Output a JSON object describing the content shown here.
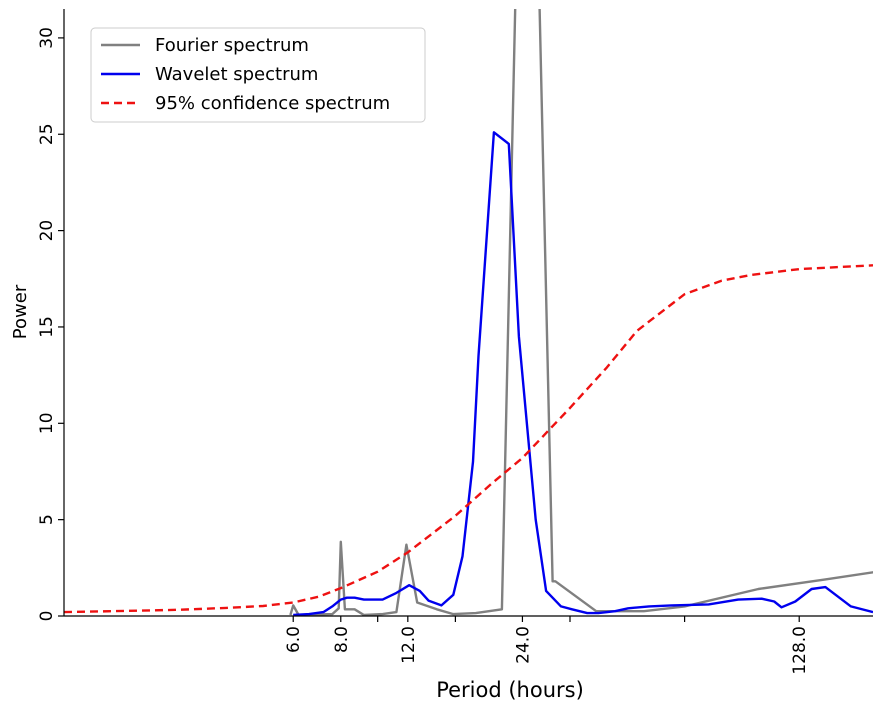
{
  "chart_data": {
    "type": "line",
    "title": "",
    "xlabel": "Period (hours)",
    "ylabel": "Power",
    "x_scale": "log2",
    "xlim": [
      1.5,
      200
    ],
    "ylim": [
      0,
      31.5
    ],
    "grid": false,
    "legend_position": "top-left",
    "x_ticks": [
      {
        "value": 6,
        "label": "6.0"
      },
      {
        "value": 8,
        "label": "8.0"
      },
      {
        "value": 12,
        "label": "12.0"
      },
      {
        "value": 24,
        "label": "24.0"
      },
      {
        "value": 128,
        "label": "128.0"
      }
    ],
    "x_minor_ticks": [
      10,
      16,
      32,
      64
    ],
    "y_ticks": [
      {
        "value": 0,
        "label": "0"
      },
      {
        "value": 5,
        "label": "5"
      },
      {
        "value": 10,
        "label": "10"
      },
      {
        "value": 15,
        "label": "15"
      },
      {
        "value": 20,
        "label": "20"
      },
      {
        "value": 25,
        "label": "25"
      },
      {
        "value": 30,
        "label": "30"
      }
    ],
    "series": [
      {
        "name": "Fourier spectrum",
        "color": "#808080",
        "style": "solid",
        "x": [
          5.9,
          6.0,
          6.2,
          7.6,
          7.9,
          8.0,
          8.2,
          8.7,
          9.2,
          10.3,
          11.2,
          11.9,
          12.7,
          14.3,
          15.8,
          18.1,
          21.2,
          23.0,
          26.6,
          28.8,
          29.3,
          37.5,
          50,
          64,
          100,
          150,
          205
        ],
        "values": [
          0.05,
          0.55,
          0.05,
          0.1,
          0.4,
          3.85,
          0.35,
          0.35,
          0.05,
          0.1,
          0.2,
          3.7,
          0.7,
          0.35,
          0.1,
          0.15,
          0.35,
          32,
          32,
          1.8,
          1.8,
          0.25,
          0.25,
          0.5,
          1.4,
          1.9,
          2.3
        ]
      },
      {
        "name": "Wavelet spectrum",
        "color": "#0000ee",
        "style": "solid",
        "x": [
          6.0,
          6.6,
          7.2,
          7.6,
          8.0,
          8.3,
          8.7,
          9.2,
          10.3,
          11.2,
          12.1,
          12.9,
          13.6,
          14.7,
          15.8,
          16.7,
          17.8,
          18.4,
          20.2,
          22.1,
          23.5,
          26.0,
          27.7,
          30.3,
          32.4,
          35.5,
          38.0,
          42.0,
          45.5,
          51.6,
          59.0,
          74.0,
          88.5,
          102,
          110,
          115,
          125,
          138,
          150,
          175,
          200
        ],
        "values": [
          0.05,
          0.1,
          0.2,
          0.5,
          0.85,
          0.95,
          0.95,
          0.85,
          0.85,
          1.2,
          1.6,
          1.3,
          0.8,
          0.55,
          1.1,
          3.1,
          8.0,
          13.5,
          25.1,
          24.5,
          14.5,
          5.0,
          1.3,
          0.5,
          0.35,
          0.15,
          0.15,
          0.25,
          0.4,
          0.5,
          0.55,
          0.6,
          0.85,
          0.9,
          0.75,
          0.45,
          0.75,
          1.4,
          1.5,
          0.5,
          0.2
        ]
      },
      {
        "name": "95% confidence spectrum",
        "color": "#ee1111",
        "style": "dashed",
        "x": [
          1.5,
          2,
          3,
          4,
          5,
          6,
          7,
          8,
          10,
          12,
          16,
          20,
          24,
          32,
          40,
          48,
          64,
          80,
          96,
          128,
          160,
          200
        ],
        "values": [
          0.2,
          0.25,
          0.32,
          0.42,
          0.52,
          0.7,
          1.0,
          1.45,
          2.3,
          3.3,
          5.2,
          6.9,
          8.2,
          10.8,
          12.9,
          14.8,
          16.7,
          17.4,
          17.7,
          18.0,
          18.1,
          18.2
        ]
      }
    ]
  }
}
